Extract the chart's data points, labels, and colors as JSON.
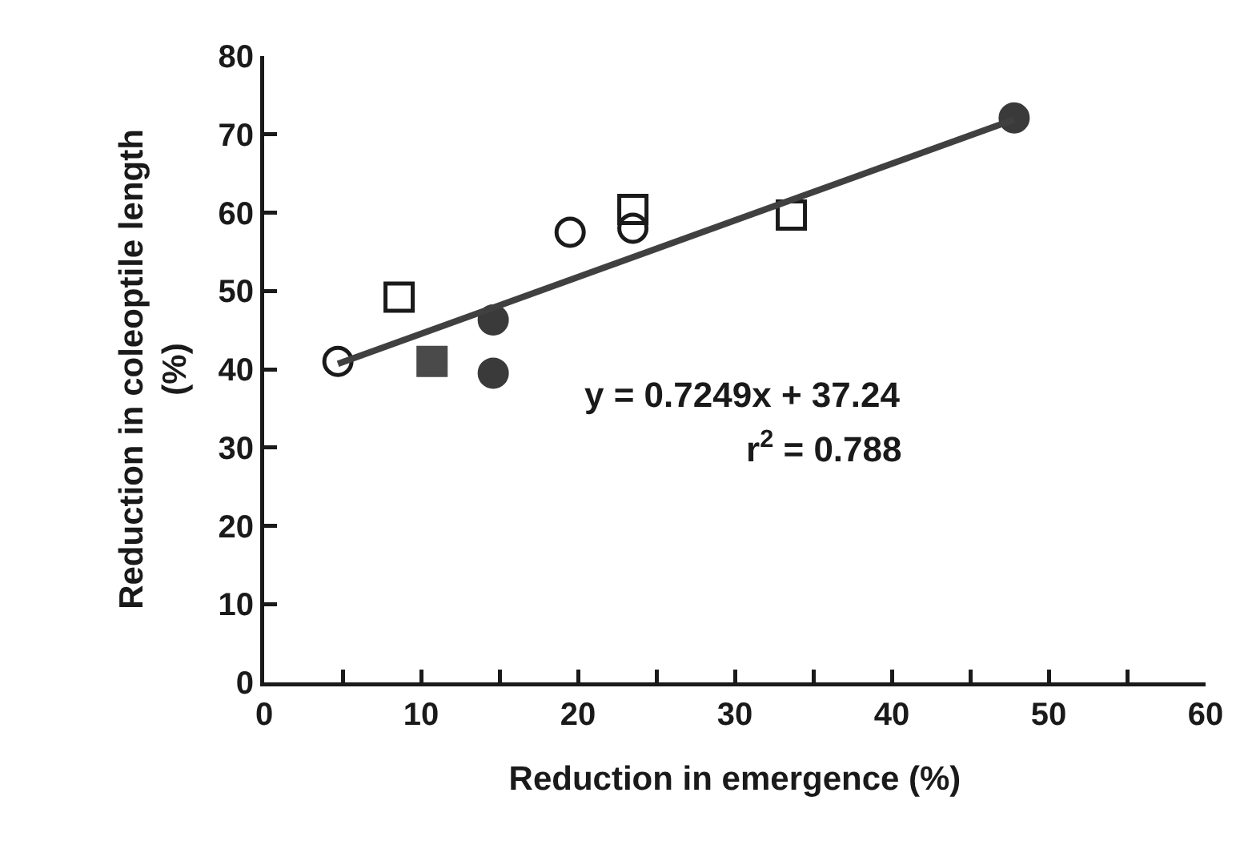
{
  "chart_data": {
    "type": "scatter",
    "xlabel": "Reduction in emergence (%)",
    "ylabel": "Reduction in coleoptile length\n(%)",
    "xlim": [
      0,
      60
    ],
    "xticks": [
      0,
      {
        "value": 5,
        "label": null
      },
      10,
      {
        "value": 15,
        "label": null
      },
      20,
      {
        "value": 25,
        "label": null
      },
      30,
      {
        "value": 35,
        "label": null
      },
      40,
      {
        "value": 45,
        "label": null
      },
      50,
      {
        "value": 55,
        "label": null
      },
      60
    ],
    "ylim": [
      0,
      80
    ],
    "yticks": [
      0,
      10,
      20,
      30,
      40,
      50,
      60,
      70,
      80
    ],
    "grid": false,
    "series": [
      {
        "marker": "circle-open",
        "color": "#1a1a1a",
        "x": [
          4.7,
          19.5,
          23.5
        ],
        "values": [
          41,
          57.5,
          58
        ]
      },
      {
        "marker": "square-open",
        "color": "#1a1a1a",
        "x": [
          8.6,
          23.5,
          33.6
        ],
        "values": [
          49.2,
          60.4,
          59.7
        ]
      },
      {
        "marker": "square",
        "color": "#4a4a4a",
        "x": [
          10.7
        ],
        "values": [
          41
        ]
      },
      {
        "marker": "circle",
        "color": "#3a3a3a",
        "x": [
          14.6,
          14.6,
          47.8
        ],
        "values": [
          46.3,
          39.5,
          72.1
        ]
      },
      {
        "type": "line",
        "marker": "none",
        "line_style": "solid",
        "color": "#404040",
        "x": [
          4.7,
          47.8
        ],
        "values": [
          40.7,
          71.9
        ]
      }
    ],
    "annotations": [
      "y = 0.7249x + 37.24",
      "r$^{2}$ = 0.788"
    ]
  }
}
